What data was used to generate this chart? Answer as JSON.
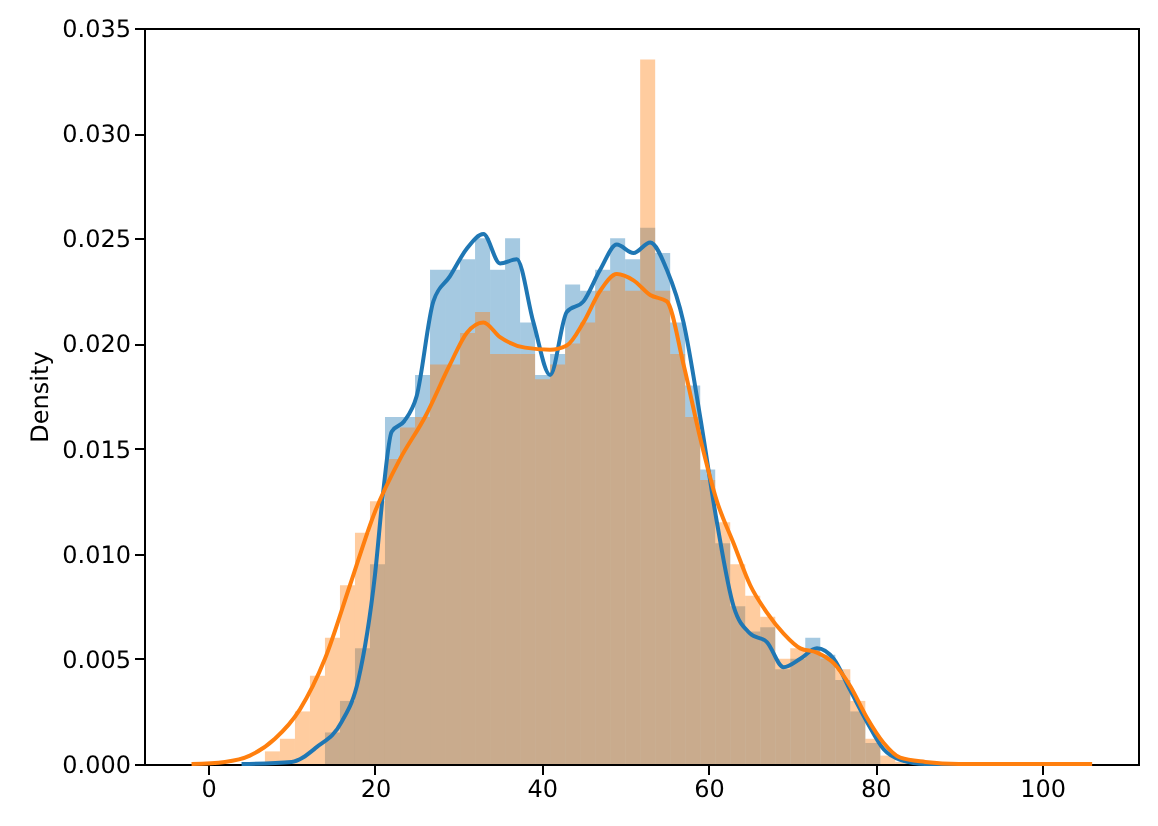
{
  "chart_data": {
    "type": "histogram",
    "ylabel": "Density",
    "bins": [
      5.0,
      6.8,
      8.6,
      10.4,
      12.2,
      14.0,
      15.8,
      17.6,
      19.4,
      21.2,
      23.0,
      24.8,
      26.6,
      28.4,
      30.2,
      32.0,
      33.8,
      35.6,
      37.4,
      39.2,
      41.0,
      42.8,
      44.6,
      46.4,
      48.2,
      50.0,
      51.8,
      53.6,
      55.4,
      57.2,
      59.0,
      60.8,
      62.6,
      64.4,
      66.2,
      68.0,
      69.8,
      71.6,
      73.4,
      75.2,
      77.0,
      78.8,
      80.6,
      82.4,
      84.2
    ],
    "series": [
      {
        "color": "#1f77b4",
        "values": [
          0,
          0,
          0,
          null,
          null,
          0.0015,
          0.003,
          0.0055,
          0.0095,
          0.0165,
          0.0165,
          0.0185,
          0.0235,
          0.0235,
          0.024,
          0.025,
          0.0235,
          0.025,
          0.021,
          0.0185,
          0.0195,
          0.0228,
          0.0225,
          0.0235,
          0.025,
          0.024,
          0.0255,
          0.0243,
          0.021,
          0.018,
          0.014,
          0.0105,
          0.0075,
          0.0063,
          0.0065,
          0.0045,
          0.005,
          0.006,
          0.0052,
          0.004,
          0.0025,
          0.001,
          null,
          0
        ]
      },
      {
        "color": "#ff7f0e",
        "values": [
          null,
          0.0006,
          0.0012,
          0.0025,
          0.0042,
          0.006,
          0.0085,
          0.011,
          0.0125,
          0.0145,
          0.016,
          0.0165,
          0.019,
          0.019,
          0.0205,
          0.0215,
          0.0195,
          0.0195,
          0.0195,
          0.0183,
          0.019,
          0.02,
          0.021,
          0.0225,
          0.0232,
          0.0225,
          0.0335,
          0.0225,
          0.0195,
          0.0165,
          0.0135,
          0.0115,
          0.0095,
          0.008,
          0.007,
          0.005,
          0.0055,
          0.0055,
          0.005,
          0.0045,
          0.003,
          0.0012,
          0.0004,
          0.0001
        ]
      },
      {
        "type": "line",
        "color": "#1f77b4",
        "x": [
          4,
          10,
          13,
          16,
          18,
          20,
          21,
          22,
          23.5,
          25,
          27,
          29,
          31,
          33,
          35,
          37,
          39,
          41,
          43,
          45,
          47,
          49,
          51,
          53,
          55,
          57,
          59,
          61,
          63,
          65,
          67,
          69,
          71,
          73,
          75,
          77,
          79,
          81,
          83,
          86,
          90
        ],
        "values": [
          0,
          0.0001,
          0.0008,
          0.002,
          0.004,
          0.009,
          0.013,
          0.0158,
          0.0163,
          0.0175,
          0.022,
          0.0232,
          0.0245,
          0.0252,
          0.0238,
          0.024,
          0.021,
          0.0185,
          0.0215,
          0.022,
          0.0235,
          0.0247,
          0.0243,
          0.0248,
          0.0235,
          0.021,
          0.0165,
          0.0115,
          0.0075,
          0.0062,
          0.0058,
          0.0046,
          0.005,
          0.0055,
          0.005,
          0.0035,
          0.002,
          0.0007,
          0.0002,
          0,
          0
        ]
      },
      {
        "type": "line",
        "color": "#ff7f0e",
        "x": [
          -2,
          2,
          5,
          8,
          11,
          14,
          17,
          20,
          23,
          26,
          29,
          31,
          33,
          35,
          38,
          41,
          43,
          45,
          47,
          49,
          51,
          53,
          55,
          57,
          59,
          61,
          63,
          65,
          67,
          69,
          71,
          73,
          75,
          77,
          79,
          81,
          83,
          86,
          90,
          106
        ],
        "values": [
          0,
          0.0001,
          0.0004,
          0.0012,
          0.0026,
          0.005,
          0.0085,
          0.012,
          0.0145,
          0.0165,
          0.019,
          0.0205,
          0.021,
          0.0203,
          0.0198,
          0.0197,
          0.0199,
          0.021,
          0.0225,
          0.0233,
          0.023,
          0.0223,
          0.022,
          0.019,
          0.0155,
          0.0125,
          0.0105,
          0.0085,
          0.0072,
          0.0062,
          0.0055,
          0.0053,
          0.0048,
          0.0037,
          0.0022,
          0.001,
          0.0003,
          0.0001,
          0,
          0
        ]
      }
    ],
    "xlim": [
      -7.7,
      111.5
    ],
    "xticks": [
      0,
      20,
      40,
      60,
      80,
      100
    ],
    "ylim": [
      0,
      0.035
    ],
    "yticks": [
      {
        "value": 0,
        "label": "0.000"
      },
      {
        "value": 0.005,
        "label": "0.005"
      },
      {
        "value": 0.01,
        "label": "0.010"
      },
      {
        "value": 0.015,
        "label": "0.015"
      },
      {
        "value": 0.02,
        "label": "0.020"
      },
      {
        "value": 0.025,
        "label": "0.025"
      },
      {
        "value": 0.03,
        "label": "0.030"
      },
      {
        "value": 0.035,
        "label": "0.035"
      }
    ],
    "grid": false
  }
}
